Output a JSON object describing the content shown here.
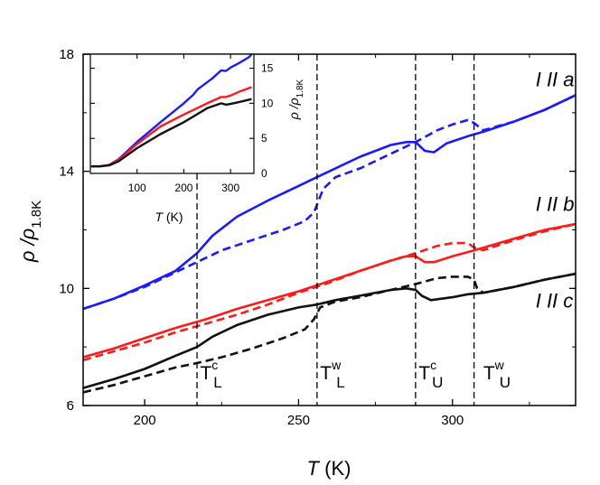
{
  "chart_data": {
    "type": "line",
    "xlabel": {
      "var": "T",
      "unit": " (K)"
    },
    "ylabel": {
      "var": "ρ /ρ",
      "sub": "1.8K"
    },
    "xlim": [
      180,
      340
    ],
    "ylim": [
      6,
      18
    ],
    "xticks": [
      "200",
      "250",
      "300"
    ],
    "xtick_values": [
      200,
      250,
      300
    ],
    "yticks": [
      "6",
      "10",
      "14",
      "18"
    ],
    "ytick_values": [
      6,
      10,
      14,
      18
    ],
    "series_labels": [
      {
        "text": "I II a",
        "x": 327,
        "y": 16.9
      },
      {
        "text": "I II b",
        "x": 327,
        "y": 12.65
      },
      {
        "text": "I II c",
        "x": 327,
        "y": 9.35
      }
    ],
    "transitions": [
      {
        "x": 217,
        "main": "T",
        "sup": "c",
        "sub": "L",
        "label_x": 218,
        "label_y": 6.9
      },
      {
        "x": 256,
        "main": "T",
        "sup": "w",
        "sub": "L",
        "label_x": 257,
        "label_y": 6.9
      },
      {
        "x": 288,
        "main": "T",
        "sup": "c",
        "sub": "U",
        "label_x": 289,
        "label_y": 6.9
      },
      {
        "x": 307,
        "main": "T",
        "sup": "w",
        "sub": "U",
        "label_x": 310,
        "label_y": 6.9
      }
    ],
    "series": [
      {
        "name": "a solid",
        "color": "#1a1aff",
        "dash": false,
        "points": [
          [
            180,
            9.3
          ],
          [
            190,
            9.65
          ],
          [
            200,
            10.1
          ],
          [
            210,
            10.6
          ],
          [
            217,
            11.2
          ],
          [
            222,
            11.8
          ],
          [
            230,
            12.45
          ],
          [
            240,
            13.0
          ],
          [
            250,
            13.5
          ],
          [
            256,
            13.8
          ],
          [
            262,
            14.1
          ],
          [
            270,
            14.5
          ],
          [
            280,
            14.9
          ],
          [
            285,
            15.0
          ],
          [
            288,
            15.0
          ],
          [
            291,
            14.7
          ],
          [
            294,
            14.65
          ],
          [
            298,
            14.95
          ],
          [
            305,
            15.2
          ],
          [
            310,
            15.35
          ],
          [
            320,
            15.7
          ],
          [
            330,
            16.1
          ],
          [
            340,
            16.6
          ]
        ]
      },
      {
        "name": "a dashed",
        "color": "#1a1aff",
        "dash": true,
        "points": [
          [
            180,
            9.3
          ],
          [
            190,
            9.65
          ],
          [
            200,
            10.05
          ],
          [
            210,
            10.55
          ],
          [
            217,
            10.9
          ],
          [
            225,
            11.3
          ],
          [
            235,
            11.65
          ],
          [
            245,
            12.0
          ],
          [
            252,
            12.3
          ],
          [
            255,
            12.6
          ],
          [
            258,
            13.4
          ],
          [
            262,
            13.8
          ],
          [
            270,
            14.1
          ],
          [
            280,
            14.6
          ],
          [
            288,
            15.0
          ],
          [
            295,
            15.4
          ],
          [
            300,
            15.6
          ],
          [
            305,
            15.75
          ],
          [
            307,
            15.65
          ],
          [
            310,
            15.4
          ],
          [
            320,
            15.7
          ],
          [
            330,
            16.1
          ],
          [
            340,
            16.6
          ]
        ]
      },
      {
        "name": "b solid",
        "color": "#ff1a1a",
        "dash": false,
        "points": [
          [
            180,
            7.65
          ],
          [
            190,
            7.95
          ],
          [
            200,
            8.3
          ],
          [
            210,
            8.65
          ],
          [
            220,
            8.95
          ],
          [
            230,
            9.3
          ],
          [
            240,
            9.6
          ],
          [
            250,
            9.9
          ],
          [
            260,
            10.25
          ],
          [
            270,
            10.6
          ],
          [
            280,
            10.95
          ],
          [
            285,
            11.1
          ],
          [
            288,
            11.1
          ],
          [
            291,
            10.9
          ],
          [
            294,
            10.9
          ],
          [
            300,
            11.1
          ],
          [
            307,
            11.3
          ],
          [
            320,
            11.7
          ],
          [
            330,
            12.0
          ],
          [
            340,
            12.2
          ]
        ]
      },
      {
        "name": "b dashed",
        "color": "#ff1a1a",
        "dash": true,
        "points": [
          [
            180,
            7.55
          ],
          [
            190,
            7.85
          ],
          [
            200,
            8.15
          ],
          [
            210,
            8.5
          ],
          [
            220,
            8.8
          ],
          [
            230,
            9.1
          ],
          [
            240,
            9.45
          ],
          [
            250,
            9.85
          ],
          [
            260,
            10.2
          ],
          [
            270,
            10.6
          ],
          [
            280,
            10.95
          ],
          [
            288,
            11.2
          ],
          [
            295,
            11.45
          ],
          [
            300,
            11.55
          ],
          [
            305,
            11.55
          ],
          [
            307,
            11.4
          ],
          [
            310,
            11.3
          ],
          [
            320,
            11.65
          ],
          [
            330,
            11.95
          ],
          [
            340,
            12.2
          ]
        ]
      },
      {
        "name": "c solid",
        "color": "#111111",
        "dash": false,
        "points": [
          [
            180,
            6.6
          ],
          [
            190,
            6.9
          ],
          [
            200,
            7.25
          ],
          [
            210,
            7.7
          ],
          [
            217,
            8.0
          ],
          [
            222,
            8.35
          ],
          [
            230,
            8.75
          ],
          [
            240,
            9.1
          ],
          [
            250,
            9.35
          ],
          [
            256,
            9.45
          ],
          [
            262,
            9.6
          ],
          [
            270,
            9.75
          ],
          [
            280,
            9.95
          ],
          [
            285,
            10.0
          ],
          [
            288,
            9.95
          ],
          [
            290,
            9.75
          ],
          [
            293,
            9.6
          ],
          [
            300,
            9.7
          ],
          [
            305,
            9.8
          ],
          [
            310,
            9.85
          ],
          [
            320,
            10.05
          ],
          [
            330,
            10.3
          ],
          [
            340,
            10.5
          ]
        ]
      },
      {
        "name": "c dashed",
        "color": "#111111",
        "dash": true,
        "points": [
          [
            180,
            6.45
          ],
          [
            190,
            6.7
          ],
          [
            200,
            7.0
          ],
          [
            210,
            7.3
          ],
          [
            217,
            7.45
          ],
          [
            225,
            7.65
          ],
          [
            235,
            7.95
          ],
          [
            245,
            8.3
          ],
          [
            252,
            8.6
          ],
          [
            255,
            8.95
          ],
          [
            257,
            9.35
          ],
          [
            262,
            9.55
          ],
          [
            270,
            9.7
          ],
          [
            280,
            9.95
          ],
          [
            288,
            10.15
          ],
          [
            295,
            10.35
          ],
          [
            300,
            10.4
          ],
          [
            305,
            10.4
          ],
          [
            307,
            10.3
          ],
          [
            308,
            10.0
          ],
          [
            310,
            9.85
          ],
          [
            320,
            10.05
          ],
          [
            330,
            10.3
          ],
          [
            340,
            10.5
          ]
        ]
      }
    ],
    "inset": {
      "xlabel": {
        "var": "T",
        "unit": " (K)"
      },
      "ylabel": {
        "var": "ρ /ρ",
        "sub": "1.8K"
      },
      "xlim": [
        0,
        350
      ],
      "ylim": [
        0,
        17
      ],
      "xticks": [
        "100",
        "200",
        "300"
      ],
      "xtick_values": [
        100,
        200,
        300
      ],
      "yticks": [
        "0",
        "5",
        "10",
        "15"
      ],
      "ytick_values": [
        0,
        5,
        10,
        15
      ],
      "series": [
        {
          "name": "inset a",
          "color": "#1a1aff",
          "points": [
            [
              1.8,
              1.0
            ],
            [
              20,
              1.0
            ],
            [
              40,
              1.2
            ],
            [
              60,
              2.0
            ],
            [
              100,
              4.5
            ],
            [
              150,
              7.3
            ],
            [
              200,
              10.0
            ],
            [
              220,
              11.2
            ],
            [
              230,
              12.0
            ],
            [
              260,
              13.5
            ],
            [
              280,
              14.7
            ],
            [
              290,
              14.6
            ],
            [
              300,
              15.1
            ],
            [
              320,
              15.8
            ],
            [
              340,
              16.6
            ],
            [
              345,
              17.0
            ]
          ]
        },
        {
          "name": "inset b",
          "color": "#ff1a1a",
          "points": [
            [
              1.8,
              1.0
            ],
            [
              20,
              1.0
            ],
            [
              40,
              1.2
            ],
            [
              60,
              1.9
            ],
            [
              100,
              4.2
            ],
            [
              150,
              6.7
            ],
            [
              200,
              8.4
            ],
            [
              250,
              10.0
            ],
            [
              280,
              10.9
            ],
            [
              290,
              10.9
            ],
            [
              300,
              11.1
            ],
            [
              320,
              11.7
            ],
            [
              345,
              12.3
            ]
          ]
        },
        {
          "name": "inset c",
          "color": "#111111",
          "points": [
            [
              1.8,
              1.0
            ],
            [
              20,
              1.0
            ],
            [
              40,
              1.15
            ],
            [
              60,
              1.7
            ],
            [
              100,
              3.6
            ],
            [
              150,
              5.6
            ],
            [
              200,
              7.3
            ],
            [
              220,
              8.1
            ],
            [
              250,
              9.3
            ],
            [
              280,
              10.0
            ],
            [
              290,
              9.8
            ],
            [
              300,
              9.9
            ],
            [
              320,
              10.2
            ],
            [
              345,
              10.6
            ]
          ]
        }
      ]
    }
  }
}
